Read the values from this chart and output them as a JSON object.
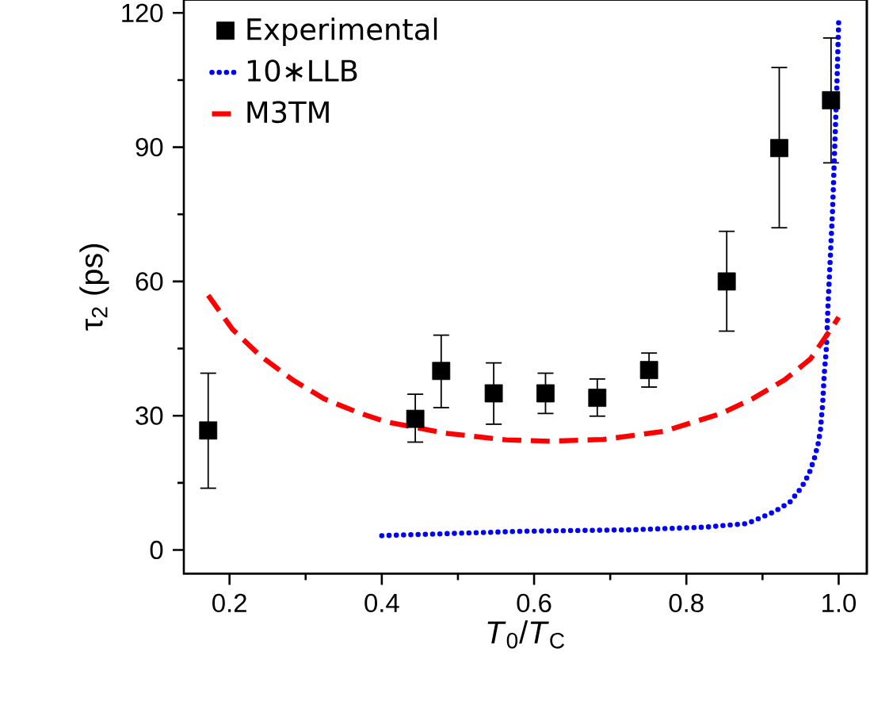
{
  "chart_data": {
    "type": "scatter",
    "xlabel": "*T*$_{0}$/*T*$_{C}$",
    "ylabel": "τ$_{2}$ (ps)",
    "xlim": [
      0.14,
      1.037
    ],
    "ylim": [
      -5.3,
      123
    ],
    "xticks": [
      0.2,
      0.4,
      0.6,
      0.8,
      "1.0"
    ],
    "yticks": [
      0,
      30,
      60,
      90,
      120
    ],
    "legend": "top left",
    "grid": false,
    "series": [
      {
        "name": "Experimental",
        "type": "scatter",
        "marker": "square",
        "color": "#000000",
        "x": [
          0.172,
          0.444,
          0.478,
          0.547,
          0.615,
          0.683,
          0.751,
          0.853,
          0.922,
          0.99
        ],
        "values": [
          26.7,
          29.3,
          40,
          35,
          35,
          34,
          40.2,
          60,
          89.8,
          100.5
        ],
        "errors": [
          [
            13.8,
            39.5
          ],
          [
            24.1,
            34.8
          ],
          [
            31.8,
            48
          ],
          [
            28.1,
            41.8
          ],
          [
            30.5,
            39.5
          ],
          [
            29.9,
            38.2
          ],
          [
            36.4,
            44
          ],
          [
            48.9,
            71.2
          ],
          [
            72,
            107.8
          ],
          [
            86.5,
            114.4
          ]
        ]
      },
      {
        "name": "10∗LLB",
        "type": "line",
        "line_style": "dotted",
        "marker": "none",
        "color": "#0000ff",
        "x": [
          0.4,
          0.59,
          0.728,
          0.825,
          0.88,
          0.915,
          0.936,
          0.951,
          0.961,
          0.968,
          0.973,
          0.976,
          0.979,
          0.981,
          0.984,
          0.986,
          0.992,
          0.998,
          1.0
        ],
        "values": [
          3.2,
          4.2,
          4.5,
          5.1,
          5.9,
          8.5,
          10.7,
          13.9,
          17.0,
          20.4,
          23.7,
          26.7,
          32.6,
          39.1,
          45.3,
          54.6,
          75.9,
          105.6,
          118
        ]
      },
      {
        "name": "M3TM",
        "type": "line",
        "line_style": "dashed",
        "marker": "none",
        "color": "#ff0000",
        "x": [
          0.172,
          0.204,
          0.241,
          0.283,
          0.324,
          0.366,
          0.404,
          0.483,
          0.563,
          0.621,
          0.691,
          0.77,
          0.846,
          0.887,
          0.929,
          0.963,
          0.994,
          1.0
        ],
        "values": [
          56.9,
          49.3,
          43.3,
          38,
          33.8,
          30.9,
          28.7,
          26.1,
          24.6,
          24.3,
          24.7,
          26.5,
          30.5,
          33.8,
          38,
          42.7,
          50.4,
          52
        ]
      }
    ]
  }
}
